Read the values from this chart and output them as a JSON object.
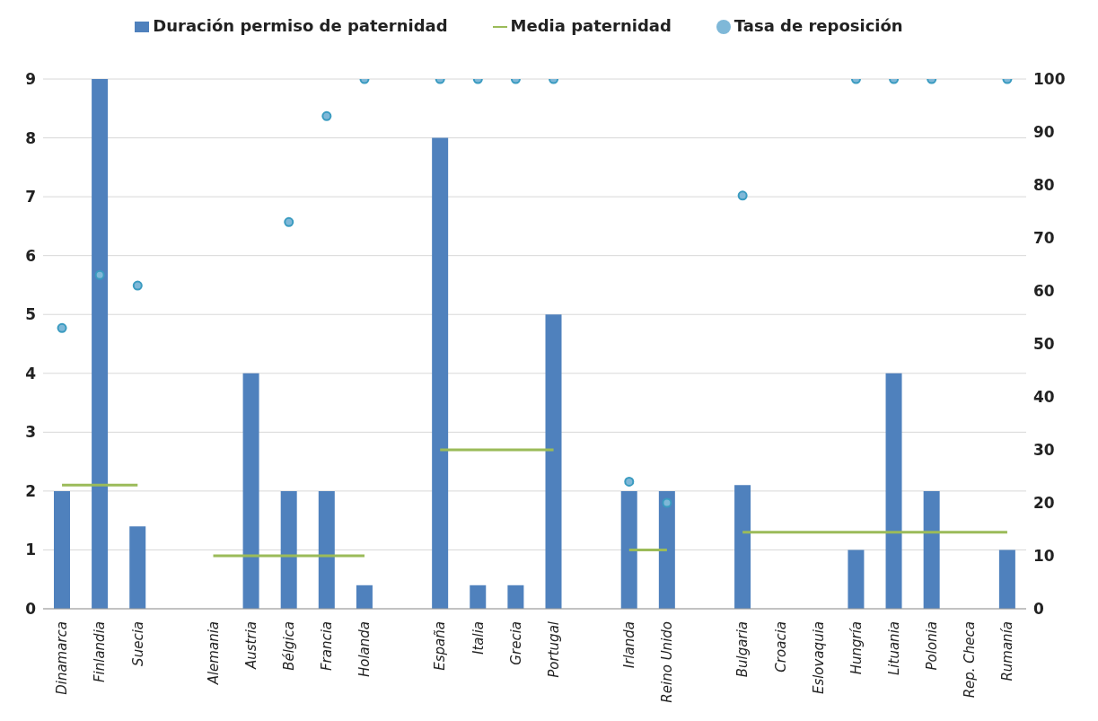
{
  "chart_data": {
    "type": "bar",
    "categories": [
      "Dinamarca",
      "Finlandia",
      "Suecia",
      null,
      "Alemania",
      "Austria",
      "Bélgica",
      "Francia",
      "Holanda",
      null,
      "España",
      "Italia",
      "Grecia",
      "Portugal",
      null,
      "Irlanda",
      "Reino Unido",
      null,
      "Bulgaria",
      "Croacia",
      "Eslovaquia",
      "Hungría",
      "Lituania",
      "Polonia",
      "Rep. Checa",
      "Rumanía"
    ],
    "series": [
      {
        "name": "Duración permiso de paternidad",
        "color": "#4f81bd",
        "values": [
          2,
          9,
          1.4,
          null,
          0,
          4,
          2,
          2,
          0.4,
          null,
          8,
          0.4,
          0.4,
          5,
          null,
          2,
          2,
          null,
          2.1,
          0,
          0,
          1,
          4,
          2,
          0,
          1
        ]
      },
      {
        "name": "Media paternidad",
        "type": "line",
        "color": "#9bbb59",
        "line_style": "solid",
        "marker": "none",
        "values": [
          2.1,
          2.1,
          2.1,
          null,
          0.9,
          0.9,
          0.9,
          0.9,
          0.9,
          null,
          2.7,
          2.7,
          2.7,
          2.7,
          null,
          1.0,
          1.0,
          null,
          1.3,
          1.3,
          1.3,
          1.3,
          1.3,
          1.3,
          1.3,
          1.3
        ]
      },
      {
        "name": "Tasa de reposición",
        "type": "scatter",
        "axis": "y2",
        "color": "#7fb8d8",
        "marker": "circle",
        "values": [
          53,
          63,
          61,
          null,
          null,
          null,
          73,
          93,
          100,
          null,
          100,
          100,
          100,
          100,
          null,
          24,
          20,
          null,
          78,
          null,
          null,
          100,
          100,
          100,
          null,
          100
        ]
      }
    ],
    "ylim": [
      0,
      9
    ],
    "yticks": [
      0,
      1,
      2,
      3,
      4,
      5,
      6,
      7,
      8,
      9
    ],
    "y2lim": [
      0,
      100
    ],
    "y2ticks": [
      0,
      10,
      20,
      30,
      40,
      50,
      60,
      70,
      80,
      90,
      100
    ],
    "grid": "y",
    "legend": "top"
  }
}
